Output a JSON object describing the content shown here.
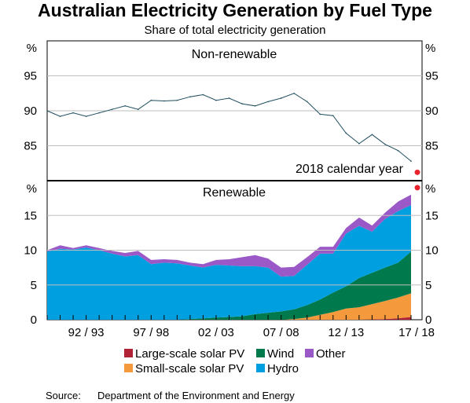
{
  "title": "Australian Electricity Generation by Fuel Type",
  "subtitle": "Share of total electricity generation",
  "source_label": "Source:",
  "source_text": "Department of the Environment and Energy",
  "annotation": "2018 calendar year",
  "colors": {
    "hydro": "#00A0E0",
    "wind": "#007A4D",
    "other": "#9B59C8",
    "small_solar": "#F59A3C",
    "large_solar": "#B22236",
    "nonrenew_line": "#1F4E5F",
    "marker": "#E8232E",
    "annotation": "#E8232E"
  },
  "chart_data": [
    {
      "type": "line",
      "title": "Non-renewable",
      "unit_label": "%",
      "ylim": [
        80,
        100
      ],
      "yticks": [
        85,
        90,
        95
      ],
      "x": [
        "89/90",
        "90/91",
        "91/92",
        "92/93",
        "93/94",
        "94/95",
        "95/96",
        "96/97",
        "97/98",
        "98/99",
        "99/00",
        "00/01",
        "01/02",
        "02/03",
        "03/04",
        "04/05",
        "05/06",
        "06/07",
        "07/08",
        "08/09",
        "09/10",
        "10/11",
        "11/12",
        "12/13",
        "13/14",
        "14/15",
        "15/16",
        "16/17",
        "17/18"
      ],
      "series": [
        {
          "values": [
            90.0,
            89.2,
            89.7,
            89.2,
            89.7,
            90.2,
            90.7,
            90.2,
            91.5,
            91.4,
            91.5,
            92.0,
            92.3,
            91.5,
            91.8,
            91.0,
            90.7,
            91.3,
            91.8,
            92.5,
            91.3,
            89.5,
            89.3,
            86.8,
            85.3,
            86.6,
            85.2,
            84.3,
            82.8
          ]
        }
      ],
      "calendar_2018_point": 81.2
    },
    {
      "type": "area",
      "title": "Renewable",
      "unit_label": "%",
      "ylim": [
        0,
        20
      ],
      "yticks": [
        0,
        5,
        10,
        15
      ],
      "xtick_labels": [
        "92 / 93",
        "97 / 98",
        "02 / 03",
        "07 / 08",
        "12 / 13",
        "17 / 18"
      ],
      "x": [
        "89/90",
        "90/91",
        "91/92",
        "92/93",
        "93/94",
        "94/95",
        "95/96",
        "96/97",
        "97/98",
        "98/99",
        "99/00",
        "00/01",
        "01/02",
        "02/03",
        "03/04",
        "04/05",
        "05/06",
        "06/07",
        "07/08",
        "08/09",
        "09/10",
        "10/11",
        "11/12",
        "12/13",
        "13/14",
        "14/15",
        "15/16",
        "16/17",
        "17/18"
      ],
      "series": [
        {
          "name": "Large-scale solar PV",
          "key": "large_solar",
          "values": [
            0,
            0,
            0,
            0,
            0,
            0,
            0,
            0,
            0,
            0,
            0,
            0,
            0,
            0,
            0,
            0,
            0,
            0,
            0,
            0,
            0,
            0,
            0,
            0,
            0,
            0.05,
            0.1,
            0.2,
            0.4
          ]
        },
        {
          "name": "Small-scale solar PV",
          "key": "small_solar",
          "values": [
            0,
            0,
            0,
            0,
            0,
            0,
            0,
            0,
            0,
            0,
            0,
            0,
            0,
            0,
            0,
            0,
            0,
            0,
            0,
            0.1,
            0.3,
            0.7,
            1.1,
            1.6,
            1.8,
            2.2,
            2.6,
            3.0,
            3.4
          ]
        },
        {
          "name": "Wind",
          "key": "wind",
          "values": [
            0,
            0,
            0,
            0,
            0,
            0,
            0,
            0,
            0,
            0,
            0,
            0.1,
            0.2,
            0.3,
            0.4,
            0.5,
            0.8,
            1.0,
            1.2,
            1.4,
            1.8,
            2.2,
            2.8,
            3.2,
            4.2,
            4.5,
            4.8,
            5.0,
            6.0
          ]
        },
        {
          "name": "Hydro",
          "key": "hydro",
          "values": [
            9.8,
            10.2,
            10.1,
            10.4,
            10.0,
            9.5,
            9.1,
            9.3,
            8.0,
            8.2,
            8.1,
            7.7,
            7.3,
            7.6,
            7.4,
            7.2,
            6.9,
            6.5,
            5.0,
            4.8,
            5.8,
            6.6,
            5.6,
            7.6,
            7.5,
            5.9,
            7.0,
            7.4,
            6.7
          ]
        },
        {
          "name": "Other",
          "key": "other",
          "values": [
            0.2,
            0.5,
            0.2,
            0.3,
            0.3,
            0.4,
            0.5,
            0.6,
            0.6,
            0.5,
            0.5,
            0.4,
            0.5,
            0.7,
            0.9,
            1.3,
            1.6,
            1.3,
            1.3,
            1.3,
            1.1,
            1.0,
            1.0,
            0.8,
            1.2,
            0.9,
            0.9,
            1.4,
            1.5
          ]
        }
      ],
      "calendar_2018_point": 19.0,
      "legend": [
        {
          "key": "large_solar",
          "label": "Large-scale solar PV"
        },
        {
          "key": "wind",
          "label": "Wind"
        },
        {
          "key": "other",
          "label": "Other"
        },
        {
          "key": "small_solar",
          "label": "Small-scale solar PV"
        },
        {
          "key": "hydro",
          "label": "Hydro"
        }
      ]
    }
  ]
}
